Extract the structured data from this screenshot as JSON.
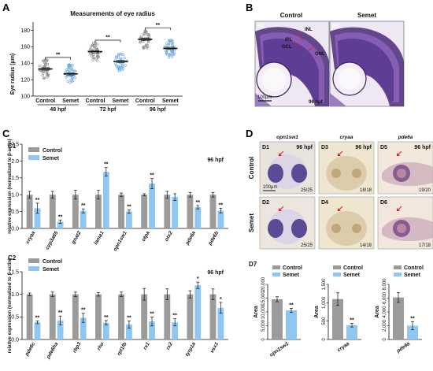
{
  "panels": {
    "A": "A",
    "B": "B",
    "C": "C",
    "C1": "C1",
    "C2": "C2",
    "D": "D",
    "D7": "D7"
  },
  "colors": {
    "control": "#9b9b9b",
    "semet": "#8ec8f2",
    "semet_dot": "#6aa8dc",
    "control_dot": "#8a8a8a"
  },
  "panelA": {
    "chart_data": {
      "type": "scatter",
      "title": "Measurements of eye radius",
      "ylabel": "Eye radius (μm)",
      "ylim": [
        100,
        190
      ],
      "yticks": [
        100,
        120,
        140,
        160,
        180
      ],
      "groups": [
        {
          "stage": "48 hpf",
          "control_mean": 133,
          "semet_mean": 127,
          "sig": "**"
        },
        {
          "stage": "72 hpf",
          "control_mean": 154,
          "semet_mean": 142,
          "sig": "**"
        },
        {
          "stage": "96 hpf",
          "control_mean": 169,
          "semet_mean": 158,
          "sig": "**"
        }
      ],
      "group_labels": [
        "Control",
        "Semet"
      ]
    }
  },
  "panelB": {
    "control_title": "Control",
    "semet_title": "Semet",
    "b1": "B1",
    "b2": "B2",
    "stage": "96 hpf",
    "scale": "100μm",
    "annotations": [
      "INL",
      "IPL",
      "GCL",
      "ONL"
    ]
  },
  "panelC1": {
    "chart_data": {
      "type": "bar",
      "categories": [
        "cryaa",
        "cyp3a65",
        "gnat2",
        "lama1",
        "opn1sw1",
        "otpa",
        "otx2",
        "pde6a",
        "pde6b"
      ],
      "series": [
        {
          "name": "Control",
          "values": [
            1.0,
            1.0,
            1.0,
            1.0,
            1.0,
            1.0,
            1.0,
            1.0,
            1.0
          ],
          "errors": [
            0.1,
            0.1,
            0.13,
            0.13,
            0.05,
            0.03,
            0.1,
            0.07,
            0.07
          ]
        },
        {
          "name": "Semet",
          "values": [
            0.6,
            0.2,
            0.52,
            1.68,
            0.5,
            1.33,
            0.93,
            0.63,
            0.53
          ],
          "errors": [
            0.15,
            0.05,
            0.06,
            0.13,
            0.05,
            0.15,
            0.1,
            0.05,
            0.07
          ]
        }
      ],
      "sig": [
        "**",
        "**",
        "**",
        "**",
        "**",
        "**",
        "",
        "**",
        "**"
      ],
      "ylabel": "relative expression (normalized to β-actin)",
      "ylim": [
        0,
        2.5
      ],
      "yticks": [
        0.0,
        0.5,
        1.0,
        1.5,
        2.0,
        2.5
      ],
      "stage": "96 hpf"
    }
  },
  "panelC2": {
    "chart_data": {
      "type": "bar",
      "categories": [
        "pde6c",
        "pde6ha",
        "rbp3",
        "rho",
        "rpl1fb",
        "rx1",
        "rx2",
        "tyrp1a",
        "vsx1"
      ],
      "series": [
        {
          "name": "Control",
          "values": [
            1.0,
            1.0,
            1.0,
            1.0,
            1.0,
            1.0,
            1.0,
            1.0,
            1.0
          ],
          "errors": [
            0.03,
            0.05,
            0.05,
            0.04,
            0.05,
            0.13,
            0.12,
            0.08,
            0.12
          ]
        },
        {
          "name": "Semet",
          "values": [
            0.38,
            0.42,
            0.48,
            0.37,
            0.33,
            0.4,
            0.38,
            1.2,
            0.7
          ],
          "errors": [
            0.03,
            0.1,
            0.1,
            0.05,
            0.08,
            0.1,
            0.08,
            0.07,
            0.12
          ]
        }
      ],
      "sig": [
        "**",
        "**",
        "**",
        "**",
        "**",
        "**",
        "**",
        "*",
        "*"
      ],
      "ylabel": "relative expression (normalized to β-actin)",
      "ylim": [
        0,
        1.5
      ],
      "yticks": [
        0.0,
        0.5,
        1.0,
        1.5
      ],
      "stage": "96 hpf"
    }
  },
  "panelD": {
    "genes": [
      "opn1sw1",
      "cryaa",
      "pde6a"
    ],
    "row_labels": [
      "Control",
      "Semet"
    ],
    "photos": [
      {
        "id": "D1",
        "stage": "96 hpf",
        "count": "25/25",
        "scale": "100μm"
      },
      {
        "id": "D3",
        "stage": "96 hpf",
        "count": "18/18"
      },
      {
        "id": "D5",
        "stage": "96 hpf",
        "count": "19/20"
      },
      {
        "id": "D2",
        "count": "25/25"
      },
      {
        "id": "D4",
        "count": "14/18"
      },
      {
        "id": "D6",
        "count": "17/18"
      }
    ]
  },
  "panelD7": {
    "chart_data": [
      {
        "type": "bar",
        "category": "opn1sw1",
        "ylabel": "Area",
        "ylim": [
          0,
          20000
        ],
        "yticks": [
          "0",
          "5,000",
          "10,000",
          "15,000",
          "20,000"
        ],
        "series": [
          {
            "name": "Control",
            "value": 14600,
            "error": 900
          },
          {
            "name": "Semet",
            "value": 10600,
            "error": 700
          }
        ],
        "sig": "**"
      },
      {
        "type": "bar",
        "category": "cryaa",
        "ylabel": "Area",
        "ylim": [
          0,
          1500
        ],
        "yticks": [
          "0",
          "500",
          "1,000",
          "1,500"
        ],
        "series": [
          {
            "name": "Control",
            "value": 1100,
            "error": 170
          },
          {
            "name": "Semet",
            "value": 390,
            "error": 50
          }
        ],
        "sig": "**"
      },
      {
        "type": "bar",
        "category": "pde6a",
        "ylabel": "Area",
        "ylim": [
          0,
          8000
        ],
        "yticks": [
          "0",
          "2,000",
          "4,000",
          "6,000",
          "8,000"
        ],
        "series": [
          {
            "name": "Control",
            "value": 6100,
            "error": 700
          },
          {
            "name": "Semet",
            "value": 2000,
            "error": 600
          }
        ],
        "sig": "**"
      }
    ]
  }
}
